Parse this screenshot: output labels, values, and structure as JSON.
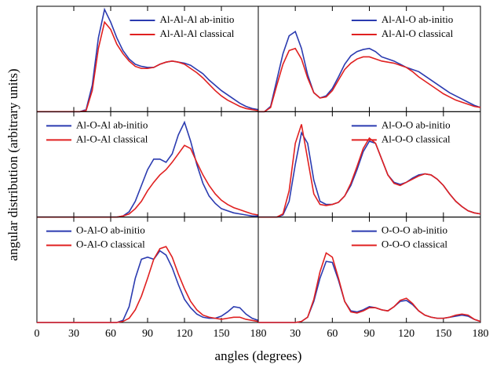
{
  "figure": {
    "xlabel": "angles (degrees)",
    "ylabel": "angular  distribution (arbitrary units)"
  },
  "chart_data": [
    {
      "type": "line",
      "legend": "upper right",
      "xlim": [
        0,
        180
      ],
      "xticks": [
        0,
        30,
        60,
        90,
        120,
        150,
        180
      ],
      "ylim": [
        0,
        1
      ],
      "x": [
        0,
        5,
        10,
        15,
        20,
        25,
        30,
        35,
        40,
        45,
        50,
        55,
        60,
        65,
        70,
        75,
        80,
        85,
        90,
        95,
        100,
        105,
        110,
        115,
        120,
        125,
        130,
        135,
        140,
        145,
        150,
        155,
        160,
        165,
        170,
        175,
        180
      ],
      "series": [
        {
          "name": "Al-Al-Al ab-initio",
          "color": "#2b3bb0",
          "values": [
            0,
            0,
            0,
            0,
            0,
            0,
            0,
            0,
            0.02,
            0.25,
            0.7,
            0.97,
            0.85,
            0.7,
            0.58,
            0.5,
            0.45,
            0.43,
            0.42,
            0.42,
            0.45,
            0.47,
            0.48,
            0.47,
            0.46,
            0.44,
            0.4,
            0.36,
            0.3,
            0.25,
            0.2,
            0.16,
            0.12,
            0.08,
            0.05,
            0.03,
            0.02
          ]
        },
        {
          "name": "Al-Al-Al classical",
          "color": "#e02020",
          "values": [
            0,
            0,
            0,
            0,
            0,
            0,
            0,
            0,
            0.01,
            0.2,
            0.6,
            0.85,
            0.78,
            0.64,
            0.55,
            0.48,
            0.43,
            0.41,
            0.41,
            0.42,
            0.45,
            0.47,
            0.48,
            0.47,
            0.45,
            0.41,
            0.37,
            0.32,
            0.26,
            0.2,
            0.15,
            0.11,
            0.08,
            0.05,
            0.03,
            0.02,
            0.01
          ]
        }
      ]
    },
    {
      "type": "line",
      "legend": "upper right",
      "xlim": [
        0,
        180
      ],
      "xticks": [
        30,
        60,
        90,
        120,
        150,
        180
      ],
      "ylim": [
        0,
        1
      ],
      "x": [
        0,
        5,
        10,
        15,
        20,
        25,
        30,
        35,
        40,
        45,
        50,
        55,
        60,
        65,
        70,
        75,
        80,
        85,
        90,
        95,
        100,
        105,
        110,
        115,
        120,
        125,
        130,
        135,
        140,
        145,
        150,
        155,
        160,
        165,
        170,
        175,
        180
      ],
      "series": [
        {
          "name": "Al-Al-O ab-initio",
          "color": "#2b3bb0",
          "values": [
            0,
            0,
            0.05,
            0.3,
            0.55,
            0.72,
            0.76,
            0.6,
            0.35,
            0.18,
            0.13,
            0.15,
            0.22,
            0.33,
            0.45,
            0.53,
            0.57,
            0.59,
            0.6,
            0.57,
            0.52,
            0.5,
            0.48,
            0.45,
            0.42,
            0.4,
            0.38,
            0.34,
            0.3,
            0.26,
            0.22,
            0.18,
            0.15,
            0.12,
            0.09,
            0.06,
            0.04
          ]
        },
        {
          "name": "Al-Al-O classical",
          "color": "#e02020",
          "values": [
            0,
            0,
            0.04,
            0.25,
            0.45,
            0.58,
            0.6,
            0.5,
            0.32,
            0.18,
            0.13,
            0.14,
            0.2,
            0.3,
            0.4,
            0.46,
            0.5,
            0.52,
            0.52,
            0.5,
            0.48,
            0.47,
            0.46,
            0.44,
            0.42,
            0.38,
            0.33,
            0.29,
            0.25,
            0.21,
            0.17,
            0.14,
            0.11,
            0.09,
            0.07,
            0.05,
            0.04
          ]
        }
      ]
    },
    {
      "type": "line",
      "legend": "upper left",
      "xlim": [
        0,
        180
      ],
      "xticks": [
        0,
        30,
        60,
        90,
        120,
        150,
        180
      ],
      "ylim": [
        0,
        1
      ],
      "x": [
        0,
        5,
        10,
        15,
        20,
        25,
        30,
        35,
        40,
        45,
        50,
        55,
        60,
        65,
        70,
        75,
        80,
        85,
        90,
        95,
        100,
        105,
        110,
        115,
        120,
        125,
        130,
        135,
        140,
        145,
        150,
        155,
        160,
        165,
        170,
        175,
        180
      ],
      "series": [
        {
          "name": "Al-O-Al ab-initio",
          "color": "#2b3bb0",
          "values": [
            0,
            0,
            0,
            0,
            0,
            0,
            0,
            0,
            0,
            0,
            0,
            0,
            0,
            0,
            0.01,
            0.05,
            0.15,
            0.3,
            0.45,
            0.55,
            0.55,
            0.52,
            0.6,
            0.78,
            0.9,
            0.72,
            0.5,
            0.32,
            0.2,
            0.13,
            0.08,
            0.06,
            0.04,
            0.03,
            0.02,
            0.01,
            0.01
          ]
        },
        {
          "name": "Al-O-Al classical",
          "color": "#e02020",
          "values": [
            0,
            0,
            0,
            0,
            0,
            0,
            0,
            0,
            0,
            0,
            0,
            0,
            0,
            0,
            0.01,
            0.03,
            0.08,
            0.15,
            0.25,
            0.33,
            0.4,
            0.45,
            0.52,
            0.6,
            0.68,
            0.65,
            0.52,
            0.4,
            0.3,
            0.22,
            0.16,
            0.12,
            0.09,
            0.07,
            0.05,
            0.03,
            0.02
          ]
        }
      ]
    },
    {
      "type": "line",
      "legend": "upper right",
      "xlim": [
        0,
        180
      ],
      "xticks": [
        30,
        60,
        90,
        120,
        150,
        180
      ],
      "ylim": [
        0,
        1
      ],
      "x": [
        0,
        5,
        10,
        15,
        20,
        25,
        30,
        35,
        40,
        45,
        50,
        55,
        60,
        65,
        70,
        75,
        80,
        85,
        90,
        95,
        100,
        105,
        110,
        115,
        120,
        125,
        130,
        135,
        140,
        145,
        150,
        155,
        160,
        165,
        170,
        175,
        180
      ],
      "series": [
        {
          "name": "Al-O-O ab-initio",
          "color": "#2b3bb0",
          "values": [
            0,
            0,
            0,
            0,
            0.02,
            0.15,
            0.5,
            0.8,
            0.7,
            0.35,
            0.15,
            0.12,
            0.12,
            0.14,
            0.2,
            0.3,
            0.45,
            0.62,
            0.72,
            0.7,
            0.55,
            0.4,
            0.33,
            0.31,
            0.33,
            0.37,
            0.4,
            0.41,
            0.4,
            0.36,
            0.3,
            0.22,
            0.15,
            0.1,
            0.06,
            0.04,
            0.03
          ]
        },
        {
          "name": "Al-O-O classical",
          "color": "#e02020",
          "values": [
            0,
            0,
            0,
            0,
            0.03,
            0.25,
            0.7,
            0.88,
            0.55,
            0.22,
            0.12,
            0.11,
            0.12,
            0.14,
            0.2,
            0.32,
            0.48,
            0.65,
            0.75,
            0.7,
            0.55,
            0.4,
            0.32,
            0.3,
            0.33,
            0.36,
            0.39,
            0.41,
            0.4,
            0.36,
            0.3,
            0.22,
            0.15,
            0.1,
            0.06,
            0.04,
            0.03
          ]
        }
      ]
    },
    {
      "type": "line",
      "legend": "upper left",
      "xlim": [
        0,
        180
      ],
      "xticks": [
        0,
        30,
        60,
        90,
        120,
        150,
        180
      ],
      "ylim": [
        0,
        1
      ],
      "x": [
        0,
        5,
        10,
        15,
        20,
        25,
        30,
        35,
        40,
        45,
        50,
        55,
        60,
        65,
        70,
        75,
        80,
        85,
        90,
        95,
        100,
        105,
        110,
        115,
        120,
        125,
        130,
        135,
        140,
        145,
        150,
        155,
        160,
        165,
        170,
        175,
        180
      ],
      "series": [
        {
          "name": "O-Al-O ab-initio",
          "color": "#2b3bb0",
          "values": [
            0,
            0,
            0,
            0,
            0,
            0,
            0,
            0,
            0,
            0,
            0,
            0,
            0,
            0,
            0.02,
            0.15,
            0.42,
            0.6,
            0.62,
            0.6,
            0.68,
            0.64,
            0.52,
            0.36,
            0.22,
            0.14,
            0.08,
            0.05,
            0.04,
            0.04,
            0.06,
            0.1,
            0.15,
            0.14,
            0.08,
            0.04,
            0.02
          ]
        },
        {
          "name": "O-Al-O classical",
          "color": "#e02020",
          "values": [
            0,
            0,
            0,
            0,
            0,
            0,
            0,
            0,
            0,
            0,
            0,
            0,
            0,
            0,
            0.01,
            0.04,
            0.12,
            0.25,
            0.42,
            0.6,
            0.7,
            0.72,
            0.62,
            0.46,
            0.32,
            0.2,
            0.12,
            0.07,
            0.05,
            0.04,
            0.03,
            0.04,
            0.05,
            0.05,
            0.03,
            0.02,
            0.01
          ]
        }
      ]
    },
    {
      "type": "line",
      "legend": "upper right",
      "xlim": [
        0,
        180
      ],
      "xticks": [
        30,
        60,
        90,
        120,
        150,
        180
      ],
      "ylim": [
        0,
        1
      ],
      "x": [
        0,
        5,
        10,
        15,
        20,
        25,
        30,
        35,
        40,
        45,
        50,
        55,
        60,
        65,
        70,
        75,
        80,
        85,
        90,
        95,
        100,
        105,
        110,
        115,
        120,
        125,
        130,
        135,
        140,
        145,
        150,
        155,
        160,
        165,
        170,
        175,
        180
      ],
      "series": [
        {
          "name": "O-O-O ab-initio",
          "color": "#2b3bb0",
          "values": [
            0,
            0,
            0,
            0,
            0,
            0,
            0,
            0.01,
            0.05,
            0.2,
            0.42,
            0.58,
            0.57,
            0.4,
            0.2,
            0.11,
            0.1,
            0.12,
            0.15,
            0.14,
            0.12,
            0.11,
            0.15,
            0.2,
            0.21,
            0.17,
            0.11,
            0.07,
            0.05,
            0.04,
            0.04,
            0.05,
            0.06,
            0.07,
            0.06,
            0.03,
            0.01
          ]
        },
        {
          "name": "O-O-O classical",
          "color": "#e02020",
          "values": [
            0,
            0,
            0,
            0,
            0,
            0,
            0,
            0.01,
            0.05,
            0.22,
            0.48,
            0.66,
            0.62,
            0.42,
            0.2,
            0.1,
            0.09,
            0.11,
            0.14,
            0.14,
            0.12,
            0.11,
            0.15,
            0.21,
            0.23,
            0.18,
            0.11,
            0.07,
            0.05,
            0.04,
            0.04,
            0.05,
            0.07,
            0.08,
            0.07,
            0.03,
            0.01
          ]
        }
      ]
    }
  ]
}
